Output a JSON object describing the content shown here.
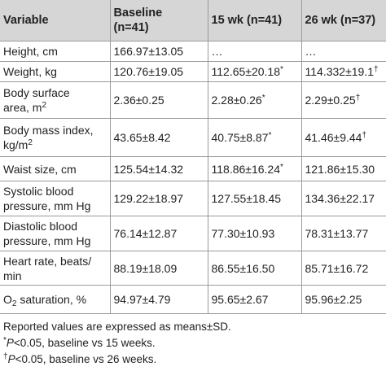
{
  "table": {
    "header": [
      [
        "Variable"
      ],
      [
        "Baseline",
        "(n=41)"
      ],
      [
        "15 wk (n=41)"
      ],
      [
        "26 wk (n=37)"
      ]
    ],
    "rows": [
      [
        [
          "Height, cm"
        ],
        [
          "166.97±13.05"
        ],
        [
          "…"
        ],
        [
          "…"
        ]
      ],
      [
        [
          "Weight, kg"
        ],
        [
          "120.76±19.05"
        ],
        [
          [
            "112.65±20.18",
            {
              "text": "*",
              "sup": true
            }
          ]
        ],
        [
          [
            "114.332±19.1",
            {
              "text": "†",
              "sup": true
            }
          ]
        ]
      ],
      [
        [
          "Body surface",
          [
            {
              "text": "area, m"
            },
            {
              "text": "2",
              "sup": true
            }
          ]
        ],
        [
          "2.36±0.25"
        ],
        [
          [
            "2.28±0.26",
            {
              "text": "*",
              "sup": true
            }
          ]
        ],
        [
          [
            "2.29±0.25",
            {
              "text": "†",
              "sup": true
            }
          ]
        ]
      ],
      [
        [
          "Body mass index,",
          [
            {
              "text": "kg/m"
            },
            {
              "text": "2",
              "sup": true
            }
          ]
        ],
        [
          "43.65±8.42"
        ],
        [
          [
            "40.75±8.87",
            {
              "text": "*",
              "sup": true
            }
          ]
        ],
        [
          [
            "41.46±9.44",
            {
              "text": "†",
              "sup": true
            }
          ]
        ]
      ],
      [
        [
          "Waist size, cm"
        ],
        [
          "125.54±14.32"
        ],
        [
          [
            "118.86±16.24",
            {
              "text": "*",
              "sup": true
            }
          ]
        ],
        [
          "121.86±15.30"
        ]
      ],
      [
        [
          "Systolic blood",
          "pressure, mm Hg"
        ],
        [
          "129.22±18.97"
        ],
        [
          "127.55±18.45"
        ],
        [
          "134.36±22.17"
        ]
      ],
      [
        [
          "Diastolic blood",
          "pressure, mm Hg"
        ],
        [
          "76.14±12.87"
        ],
        [
          "77.30±10.93"
        ],
        [
          "78.31±13.77"
        ]
      ],
      [
        [
          "Heart rate, beats/",
          "min"
        ],
        [
          "88.19±18.09"
        ],
        [
          "86.55±16.50"
        ],
        [
          "85.71±16.72"
        ]
      ],
      [
        [
          [
            {
              "text": "O"
            },
            {
              "text": "2",
              "sub": true
            },
            {
              "text": " saturation, %"
            }
          ]
        ],
        [
          "94.97±4.79"
        ],
        [
          "95.65±2.67"
        ],
        [
          "95.96±2.25"
        ]
      ]
    ]
  },
  "footnotes": [
    "Reported values are expressed as means±SD.",
    [
      {
        "text": "*",
        "sup": true
      },
      {
        "text": "P",
        "italic": true
      },
      {
        "text": "<0.05, baseline vs 15 weeks."
      }
    ],
    [
      {
        "text": "†",
        "sup": true
      },
      {
        "text": "P",
        "italic": true
      },
      {
        "text": "<0.05, baseline vs 26 weeks."
      }
    ]
  ]
}
